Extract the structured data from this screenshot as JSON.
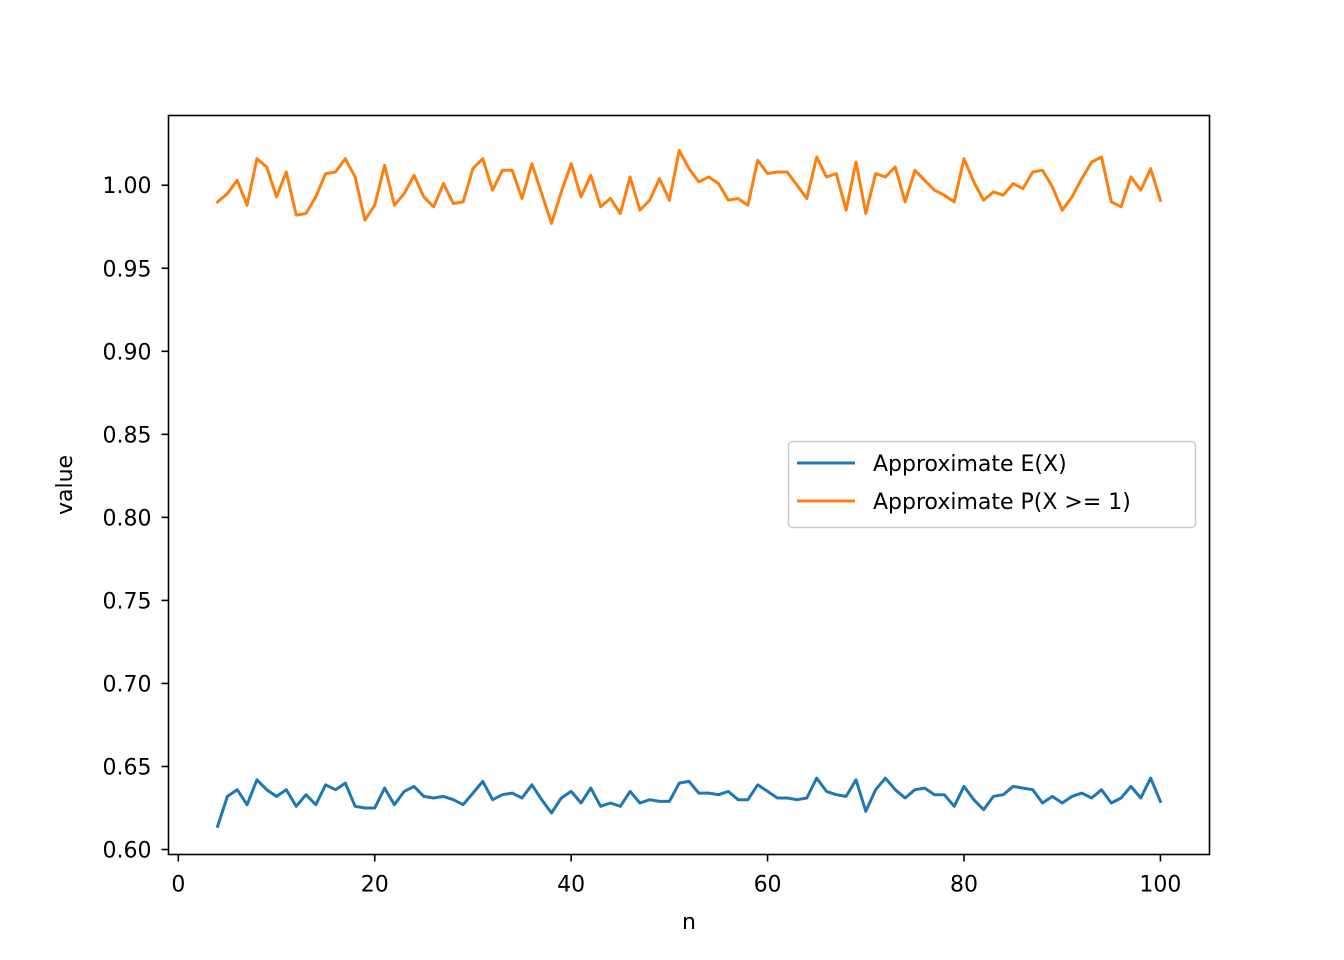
{
  "chart_data": {
    "type": "line",
    "title": "",
    "xlabel": "n",
    "ylabel": "value",
    "xlim": [
      -1,
      105
    ],
    "ylim": [
      0.597,
      1.042
    ],
    "xticks": [
      0,
      20,
      40,
      60,
      80,
      100
    ],
    "xtick_labels": [
      "0",
      "20",
      "40",
      "60",
      "80",
      "100"
    ],
    "yticks": [
      0.6,
      0.65,
      0.7,
      0.75,
      0.8,
      0.85,
      0.9,
      0.95,
      1.0
    ],
    "ytick_labels": [
      "0.60",
      "0.65",
      "0.70",
      "0.75",
      "0.80",
      "0.85",
      "0.90",
      "0.95",
      "1.00"
    ],
    "grid": false,
    "legend_position": "center-right",
    "x": [
      4,
      5,
      6,
      7,
      8,
      9,
      10,
      11,
      12,
      13,
      14,
      15,
      16,
      17,
      18,
      19,
      20,
      21,
      22,
      23,
      24,
      25,
      26,
      27,
      28,
      29,
      30,
      31,
      32,
      33,
      34,
      35,
      36,
      37,
      38,
      39,
      40,
      41,
      42,
      43,
      44,
      45,
      46,
      47,
      48,
      49,
      50,
      51,
      52,
      53,
      54,
      55,
      56,
      57,
      58,
      59,
      60,
      61,
      62,
      63,
      64,
      65,
      66,
      67,
      68,
      69,
      70,
      71,
      72,
      73,
      74,
      75,
      76,
      77,
      78,
      79,
      80,
      81,
      82,
      83,
      84,
      85,
      86,
      87,
      88,
      89,
      90,
      91,
      92,
      93,
      94,
      95,
      96,
      97,
      98,
      99,
      100
    ],
    "series": [
      {
        "name": "Approximate E(X)",
        "color": "#1f77b4",
        "values": [
          0.614,
          0.632,
          0.636,
          0.627,
          0.642,
          0.636,
          0.632,
          0.636,
          0.626,
          0.633,
          0.627,
          0.639,
          0.636,
          0.64,
          0.626,
          0.625,
          0.625,
          0.637,
          0.627,
          0.635,
          0.638,
          0.632,
          0.631,
          0.632,
          0.63,
          0.627,
          0.634,
          0.641,
          0.63,
          0.633,
          0.634,
          0.631,
          0.639,
          0.63,
          0.622,
          0.631,
          0.635,
          0.628,
          0.637,
          0.626,
          0.628,
          0.626,
          0.635,
          0.628,
          0.63,
          0.629,
          0.629,
          0.64,
          0.641,
          0.634,
          0.634,
          0.633,
          0.635,
          0.63,
          0.63,
          0.639,
          0.635,
          0.631,
          0.631,
          0.63,
          0.631,
          0.643,
          0.635,
          0.633,
          0.632,
          0.642,
          0.623,
          0.636,
          0.643,
          0.636,
          0.631,
          0.636,
          0.637,
          0.633,
          0.633,
          0.626,
          0.638,
          0.63,
          0.624,
          0.632,
          0.633,
          0.638,
          0.637,
          0.636,
          0.628,
          0.632,
          0.628,
          0.632,
          0.634,
          0.631,
          0.636,
          0.628,
          0.631,
          0.638,
          0.631,
          0.643,
          0.629
        ]
      },
      {
        "name": "Approximate P(X >= 1)",
        "color": "#ff7f0e",
        "values": [
          0.99,
          0.995,
          1.003,
          0.988,
          1.016,
          1.011,
          0.993,
          1.008,
          0.982,
          0.983,
          0.993,
          1.007,
          1.008,
          1.016,
          1.005,
          0.979,
          0.988,
          1.012,
          0.988,
          0.995,
          1.006,
          0.993,
          0.987,
          1.001,
          0.989,
          0.99,
          1.01,
          1.016,
          0.997,
          1.009,
          1.009,
          0.992,
          1.013,
          0.995,
          0.977,
          0.996,
          1.013,
          0.993,
          1.006,
          0.987,
          0.992,
          0.983,
          1.005,
          0.985,
          0.991,
          1.004,
          0.991,
          1.021,
          1.01,
          1.002,
          1.005,
          1.001,
          0.991,
          0.992,
          0.988,
          1.015,
          1.007,
          1.008,
          1.008,
          1.0,
          0.992,
          1.017,
          1.005,
          1.007,
          0.985,
          1.014,
          0.983,
          1.007,
          1.005,
          1.011,
          0.99,
          1.009,
          1.003,
          0.997,
          0.994,
          0.99,
          1.016,
          1.002,
          0.991,
          0.996,
          0.994,
          1.001,
          0.998,
          1.008,
          1.009,
          0.999,
          0.985,
          0.993,
          1.004,
          1.014,
          1.017,
          0.99,
          0.987,
          1.005,
          0.997,
          1.01,
          0.991
        ]
      }
    ]
  }
}
